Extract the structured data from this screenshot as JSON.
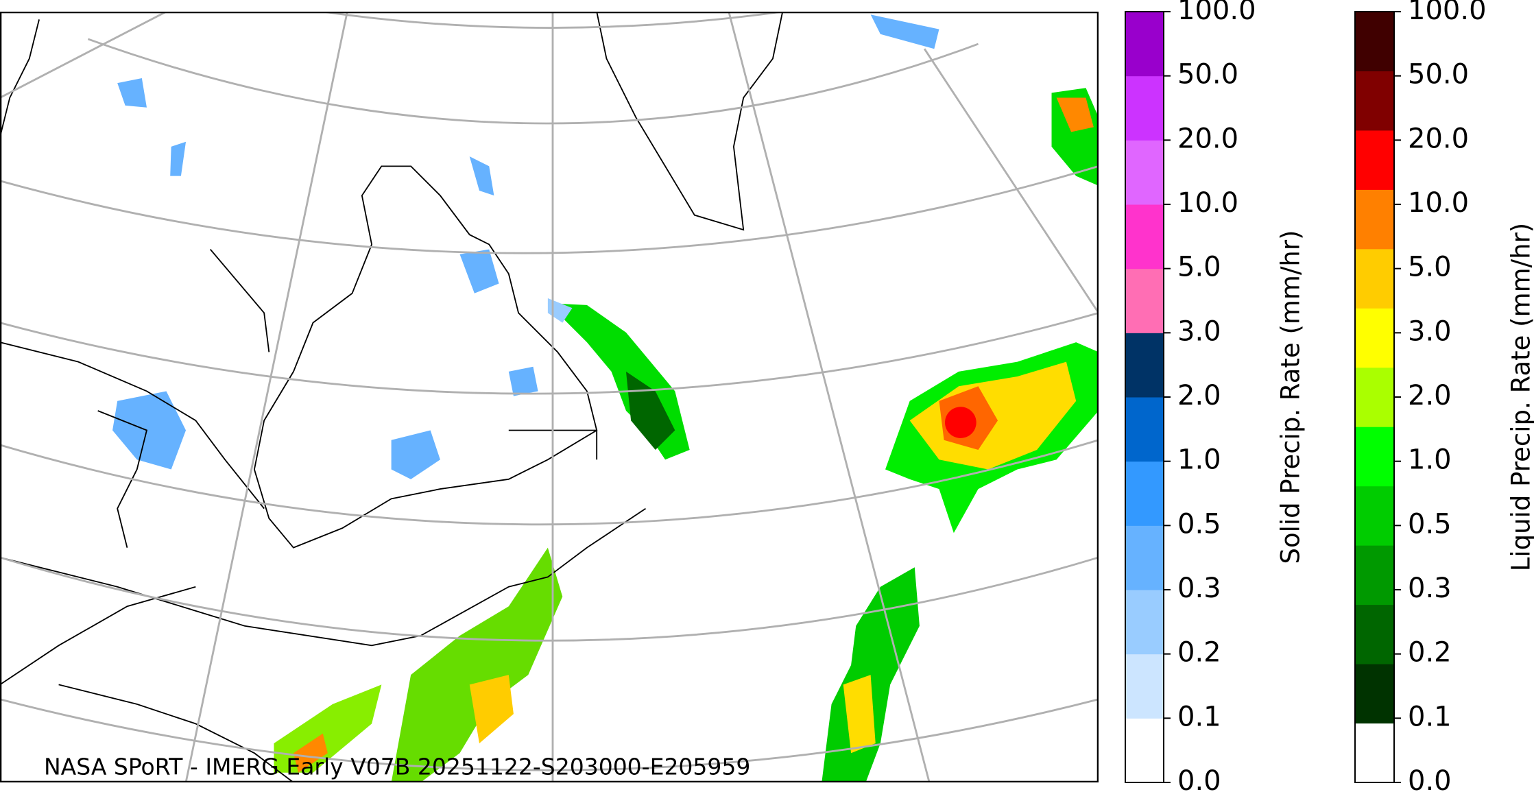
{
  "caption": "NASA SPoRT - IMERG Early V07B 20251122-S203000-E205959",
  "colorbars": [
    {
      "label": "Solid Precip. Rate (mm/hr)",
      "ticks": [
        "0.0",
        "0.1",
        "0.2",
        "0.3",
        "0.5",
        "1.0",
        "2.0",
        "3.0",
        "5.0",
        "10.0",
        "20.0",
        "50.0",
        "100.0"
      ],
      "colors": [
        "#ffffff",
        "#cce5ff",
        "#99ccff",
        "#66b2ff",
        "#3399ff",
        "#0066cc",
        "#003366",
        "#ff6eb4",
        "#ff33cc",
        "#e066ff",
        "#cc33ff",
        "#9900cc"
      ]
    },
    {
      "label": "Liquid Precip. Rate (mm/hr)",
      "ticks": [
        "0.0",
        "0.1",
        "0.2",
        "0.3",
        "0.5",
        "1.0",
        "2.0",
        "3.0",
        "5.0",
        "10.0",
        "20.0",
        "50.0",
        "100.0"
      ],
      "colors": [
        "#ffffff",
        "#003300",
        "#006600",
        "#009900",
        "#00cc00",
        "#00ff00",
        "#aaff00",
        "#ffff00",
        "#ffcc00",
        "#ff8000",
        "#ff0000",
        "#800000",
        "#400000"
      ]
    }
  ]
}
